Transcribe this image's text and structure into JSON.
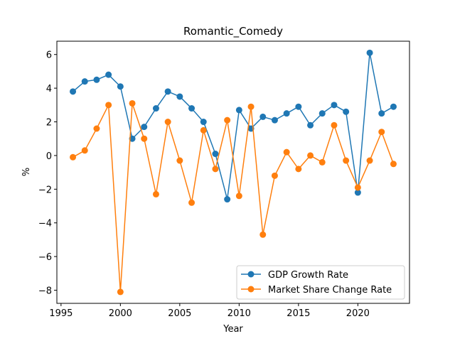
{
  "chart_data": {
    "type": "line",
    "title": "Romantic_Comedy",
    "xlabel": "Year",
    "ylabel": "%",
    "xlim": [
      1994.65,
      2024.35
    ],
    "ylim": [
      -8.78,
      6.79
    ],
    "xticks": [
      1995,
      2000,
      2005,
      2010,
      2015,
      2020
    ],
    "yticks": [
      -8,
      -6,
      -4,
      -2,
      0,
      2,
      4,
      6
    ],
    "ytick_labels": [
      "−8",
      "−6",
      "−4",
      "−2",
      "0",
      "2",
      "4",
      "6"
    ],
    "grid": false,
    "legend_position": "lower-right",
    "x": [
      1996,
      1997,
      1998,
      1999,
      2000,
      2001,
      2002,
      2003,
      2004,
      2005,
      2006,
      2007,
      2008,
      2009,
      2010,
      2011,
      2012,
      2013,
      2014,
      2015,
      2016,
      2017,
      2018,
      2019,
      2020,
      2021,
      2022,
      2023
    ],
    "series": [
      {
        "name": "GDP Growth Rate",
        "color": "#1f77b4",
        "values": [
          3.8,
          4.4,
          4.5,
          4.8,
          4.1,
          1.0,
          1.7,
          2.8,
          3.8,
          3.5,
          2.8,
          2.0,
          0.1,
          -2.6,
          2.7,
          1.6,
          2.3,
          2.1,
          2.5,
          2.9,
          1.8,
          2.5,
          3.0,
          2.6,
          -2.2,
          6.1,
          2.5,
          2.9
        ]
      },
      {
        "name": "Market Share Change Rate",
        "color": "#ff7f0e",
        "values": [
          -0.1,
          0.3,
          1.6,
          3.0,
          -8.1,
          3.1,
          1.0,
          -2.3,
          2.0,
          -0.3,
          -2.8,
          1.5,
          -0.8,
          2.1,
          -2.4,
          2.9,
          -4.7,
          -1.2,
          0.2,
          -0.8,
          0.0,
          -0.4,
          1.8,
          -0.3,
          -1.9,
          -0.3,
          1.4,
          -0.5
        ]
      }
    ]
  }
}
